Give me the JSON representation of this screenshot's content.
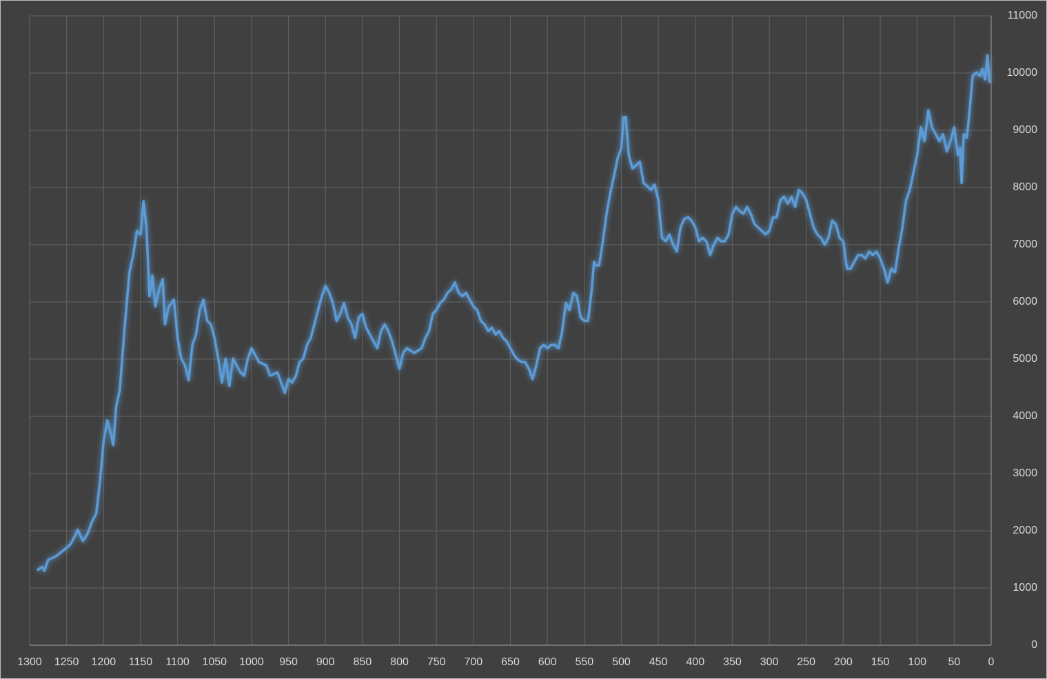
{
  "chart_data": {
    "type": "line",
    "x": [
      1290,
      1283,
      1280,
      1275,
      1265,
      1255,
      1245,
      1240,
      1235,
      1228,
      1222,
      1215,
      1210,
      1205,
      1200,
      1195,
      1190,
      1187,
      1183,
      1178,
      1172,
      1165,
      1160,
      1155,
      1150,
      1146,
      1142,
      1138,
      1134,
      1130,
      1125,
      1120,
      1117,
      1112,
      1105,
      1100,
      1095,
      1090,
      1085,
      1080,
      1075,
      1070,
      1065,
      1060,
      1055,
      1050,
      1045,
      1040,
      1035,
      1030,
      1025,
      1020,
      1015,
      1010,
      1005,
      1000,
      995,
      990,
      980,
      975,
      965,
      960,
      955,
      950,
      945,
      940,
      935,
      930,
      925,
      920,
      915,
      910,
      905,
      900,
      895,
      890,
      885,
      880,
      875,
      870,
      865,
      860,
      855,
      850,
      845,
      840,
      835,
      830,
      825,
      820,
      815,
      810,
      805,
      800,
      795,
      790,
      780,
      770,
      765,
      760,
      755,
      750,
      745,
      740,
      735,
      730,
      725,
      720,
      715,
      710,
      705,
      700,
      695,
      690,
      685,
      680,
      675,
      670,
      665,
      660,
      655,
      650,
      645,
      640,
      635,
      630,
      625,
      620,
      615,
      610,
      605,
      600,
      595,
      590,
      585,
      580,
      575,
      570,
      565,
      560,
      555,
      550,
      545,
      540,
      537,
      535,
      530,
      525,
      520,
      515,
      510,
      505,
      500,
      497,
      494,
      490,
      485,
      480,
      475,
      470,
      465,
      460,
      455,
      450,
      445,
      440,
      435,
      430,
      425,
      420,
      415,
      410,
      405,
      400,
      395,
      390,
      385,
      380,
      375,
      370,
      365,
      360,
      355,
      350,
      345,
      340,
      335,
      330,
      325,
      320,
      315,
      310,
      305,
      300,
      295,
      290,
      285,
      280,
      275,
      270,
      265,
      260,
      255,
      250,
      245,
      240,
      235,
      230,
      225,
      220,
      215,
      210,
      205,
      200,
      195,
      190,
      185,
      180,
      175,
      170,
      165,
      160,
      155,
      150,
      145,
      140,
      135,
      130,
      125,
      120,
      115,
      110,
      105,
      100,
      95,
      90,
      85,
      80,
      75,
      70,
      65,
      60,
      55,
      50,
      45,
      42,
      40,
      37,
      33,
      30,
      25,
      20,
      15,
      12,
      8,
      5,
      2
    ],
    "values": [
      1310,
      1370,
      1300,
      1490,
      1550,
      1650,
      1760,
      1880,
      2020,
      1820,
      1940,
      2180,
      2300,
      2840,
      3570,
      3930,
      3690,
      3500,
      4170,
      4470,
      5490,
      6520,
      6820,
      7240,
      7180,
      7760,
      7300,
      6100,
      6460,
      5920,
      6220,
      6400,
      5610,
      5920,
      6040,
      5370,
      5010,
      4890,
      4630,
      5250,
      5430,
      5860,
      6040,
      5670,
      5610,
      5370,
      5010,
      4590,
      5010,
      4530,
      5010,
      4890,
      4770,
      4710,
      5010,
      5190,
      5070,
      4950,
      4890,
      4710,
      4770,
      4590,
      4410,
      4650,
      4590,
      4710,
      4950,
      5010,
      5250,
      5370,
      5610,
      5860,
      6100,
      6280,
      6160,
      5980,
      5670,
      5790,
      5980,
      5730,
      5610,
      5370,
      5730,
      5790,
      5550,
      5430,
      5310,
      5190,
      5490,
      5610,
      5490,
      5310,
      5070,
      4830,
      5110,
      5190,
      5110,
      5190,
      5370,
      5490,
      5790,
      5860,
      5980,
      6040,
      6160,
      6220,
      6340,
      6160,
      6100,
      6160,
      6040,
      5920,
      5860,
      5670,
      5610,
      5490,
      5550,
      5430,
      5490,
      5370,
      5310,
      5190,
      5070,
      4990,
      4950,
      4950,
      4830,
      4650,
      4890,
      5190,
      5250,
      5190,
      5250,
      5250,
      5190,
      5490,
      5980,
      5860,
      6160,
      6100,
      5730,
      5670,
      5670,
      6220,
      6700,
      6640,
      6640,
      7060,
      7540,
      7900,
      8200,
      8510,
      8690,
      9230,
      9230,
      8570,
      8330,
      8390,
      8450,
      8080,
      8020,
      7960,
      8050,
      7780,
      7120,
      7060,
      7180,
      7000,
      6880,
      7300,
      7450,
      7480,
      7420,
      7300,
      7060,
      7120,
      7060,
      6820,
      7000,
      7120,
      7060,
      7060,
      7180,
      7540,
      7660,
      7590,
      7540,
      7660,
      7540,
      7360,
      7300,
      7240,
      7180,
      7240,
      7480,
      7480,
      7780,
      7840,
      7720,
      7840,
      7660,
      7960,
      7900,
      7780,
      7540,
      7300,
      7180,
      7120,
      7000,
      7120,
      7420,
      7360,
      7120,
      7060,
      6580,
      6580,
      6700,
      6820,
      6820,
      6760,
      6880,
      6820,
      6880,
      6760,
      6580,
      6340,
      6580,
      6520,
      6940,
      7300,
      7780,
      7960,
      8270,
      8570,
      9050,
      8810,
      9350,
      9050,
      8930,
      8810,
      8930,
      8630,
      8810,
      9050,
      8570,
      8690,
      8080,
      8930,
      8870,
      9230,
      9950,
      10010,
      9950,
      10070,
      9890,
      10310,
      9830
    ],
    "color": "#5b9bd5",
    "xlim": [
      1300,
      0
    ],
    "xticks": [
      1300,
      1250,
      1200,
      1150,
      1100,
      1050,
      1000,
      950,
      900,
      850,
      800,
      750,
      700,
      650,
      600,
      550,
      500,
      450,
      400,
      350,
      300,
      250,
      200,
      150,
      100,
      50,
      0
    ],
    "ylim": [
      0,
      11000
    ],
    "yticks": [
      0,
      1000,
      2000,
      3000,
      4000,
      5000,
      6000,
      7000,
      8000,
      9000,
      10000,
      11000
    ],
    "grid": true
  }
}
